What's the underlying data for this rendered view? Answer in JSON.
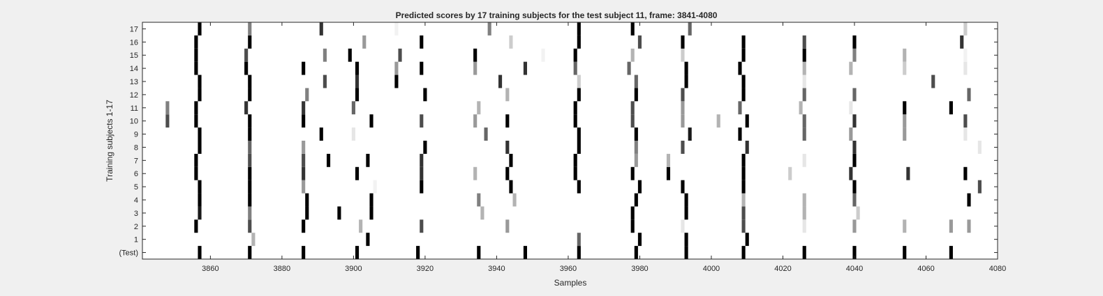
{
  "figure": {
    "background": "#f0f0f0"
  },
  "chart_data": {
    "type": "heatmap",
    "title": "Predicted scores by 17 training subjects for the test subject 11, frame: 3841-4080",
    "xlabel": "Samples",
    "ylabel": "Training subjects 1-17",
    "xlim": [
      3841,
      4080
    ],
    "x_ticks": [
      3860,
      3880,
      3900,
      3920,
      3940,
      3960,
      3980,
      4000,
      4020,
      4040,
      4060,
      4080
    ],
    "y_tick_labels": [
      "(Test)",
      "1",
      "2",
      "3",
      "4",
      "5",
      "6",
      "7",
      "8",
      "9",
      "10",
      "11",
      "12",
      "13",
      "14",
      "15",
      "16",
      "17"
    ],
    "colormap": "gray (white = 0, black = 1)",
    "grid": false,
    "mark_width_samples": 1,
    "rows": [
      {
        "label": "(Test)",
        "marks": [
          [
            3857,
            1
          ],
          [
            3871,
            1
          ],
          [
            3886,
            1
          ],
          [
            3901,
            1
          ],
          [
            3918,
            1
          ],
          [
            3935,
            1
          ],
          [
            3948,
            1
          ],
          [
            3963,
            1
          ],
          [
            3979,
            1
          ],
          [
            3993,
            1
          ],
          [
            4009,
            1
          ],
          [
            4026,
            1
          ],
          [
            4040,
            1
          ],
          [
            4054,
            1
          ],
          [
            4067,
            1
          ]
        ]
      },
      {
        "label": "1",
        "marks": [
          [
            3872,
            0.3
          ],
          [
            3904,
            1
          ],
          [
            3963,
            0.6
          ],
          [
            3980,
            1
          ],
          [
            3993,
            1
          ],
          [
            4010,
            1
          ]
        ]
      },
      {
        "label": "2",
        "marks": [
          [
            3856,
            1
          ],
          [
            3871,
            0.7
          ],
          [
            3886,
            1
          ],
          [
            3902,
            0.3
          ],
          [
            3919,
            0.7
          ],
          [
            3943,
            0.4
          ],
          [
            3978,
            1
          ],
          [
            3992,
            0.1
          ],
          [
            4009,
            0.7
          ],
          [
            4026,
            0.1
          ],
          [
            4040,
            0.4
          ],
          [
            4054,
            0.3
          ],
          [
            4067,
            0.4
          ],
          [
            4072,
            0.4
          ]
        ]
      },
      {
        "label": "3",
        "marks": [
          [
            3857,
            0.9
          ],
          [
            3871,
            0.5
          ],
          [
            3887,
            1
          ],
          [
            3896,
            1
          ],
          [
            3905,
            1
          ],
          [
            3936,
            0.3
          ],
          [
            3978,
            1
          ],
          [
            3993,
            1
          ],
          [
            4009,
            0.7
          ],
          [
            4026,
            0.3
          ],
          [
            4041,
            0.2
          ]
        ]
      },
      {
        "label": "4",
        "marks": [
          [
            3857,
            1
          ],
          [
            3871,
            1
          ],
          [
            3887,
            1
          ],
          [
            3905,
            1
          ],
          [
            3935,
            0.5
          ],
          [
            3945,
            0.3
          ],
          [
            3979,
            1
          ],
          [
            3993,
            1
          ],
          [
            4009,
            0.3
          ],
          [
            4026,
            0.3
          ],
          [
            4040,
            0.6
          ],
          [
            4072,
            1
          ]
        ]
      },
      {
        "label": "5",
        "marks": [
          [
            3857,
            1
          ],
          [
            3871,
            1
          ],
          [
            3886,
            0.4
          ],
          [
            3906,
            0.05
          ],
          [
            3919,
            1
          ],
          [
            3944,
            1
          ],
          [
            3963,
            1
          ],
          [
            3980,
            1
          ],
          [
            3992,
            1
          ],
          [
            4009,
            1
          ],
          [
            4040,
            1
          ],
          [
            4075,
            0.7
          ]
        ]
      },
      {
        "label": "6",
        "marks": [
          [
            3856,
            1
          ],
          [
            3871,
            1
          ],
          [
            3886,
            0.8
          ],
          [
            3901,
            1
          ],
          [
            3919,
            0.8
          ],
          [
            3934,
            0.3
          ],
          [
            3943,
            1
          ],
          [
            3962,
            1
          ],
          [
            3978,
            1
          ],
          [
            3988,
            1
          ],
          [
            4009,
            1
          ],
          [
            4022,
            0.2
          ],
          [
            4039,
            0.8
          ],
          [
            4055,
            0.8
          ],
          [
            4071,
            1
          ]
        ]
      },
      {
        "label": "7",
        "marks": [
          [
            3856,
            1
          ],
          [
            3871,
            0.7
          ],
          [
            3886,
            0.7
          ],
          [
            3893,
            1
          ],
          [
            3904,
            1
          ],
          [
            3919,
            0.8
          ],
          [
            3944,
            1
          ],
          [
            3962,
            1
          ],
          [
            3979,
            0.4
          ],
          [
            3988,
            0.3
          ],
          [
            4009,
            1
          ],
          [
            4026,
            0.1
          ],
          [
            4040,
            1
          ]
        ]
      },
      {
        "label": "8",
        "marks": [
          [
            3857,
            1
          ],
          [
            3871,
            0.6
          ],
          [
            3886,
            0.4
          ],
          [
            3920,
            1
          ],
          [
            3943,
            0.8
          ],
          [
            3963,
            1
          ],
          [
            3979,
            0.5
          ],
          [
            3992,
            0.7
          ],
          [
            4010,
            0.8
          ],
          [
            4040,
            0.8
          ],
          [
            4075,
            0.1
          ]
        ]
      },
      {
        "label": "9",
        "marks": [
          [
            3857,
            1
          ],
          [
            3871,
            1
          ],
          [
            3891,
            1
          ],
          [
            3900,
            0.1
          ],
          [
            3937,
            0.6
          ],
          [
            3963,
            1
          ],
          [
            3979,
            1
          ],
          [
            3994,
            0.9
          ],
          [
            4008,
            1
          ],
          [
            4026,
            0.6
          ],
          [
            4039,
            0.4
          ],
          [
            4054,
            0.4
          ],
          [
            4071,
            0.1
          ]
        ]
      },
      {
        "label": "10",
        "marks": [
          [
            3848,
            0.7
          ],
          [
            3856,
            1
          ],
          [
            3871,
            1
          ],
          [
            3886,
            1
          ],
          [
            3905,
            1
          ],
          [
            3919,
            0.7
          ],
          [
            3934,
            0.4
          ],
          [
            3943,
            1
          ],
          [
            3962,
            1
          ],
          [
            3978,
            0.7
          ],
          [
            3992,
            0.4
          ],
          [
            4002,
            0.3
          ],
          [
            4010,
            1
          ],
          [
            4026,
            0.6
          ],
          [
            4040,
            0.8
          ],
          [
            4054,
            0.4
          ],
          [
            4071,
            0.7
          ]
        ]
      },
      {
        "label": "11",
        "marks": [
          [
            3848,
            0.5
          ],
          [
            3856,
            1
          ],
          [
            3870,
            0.8
          ],
          [
            3886,
            0.8
          ],
          [
            3900,
            0.6
          ],
          [
            3935,
            0.3
          ],
          [
            3962,
            1
          ],
          [
            3978,
            0.7
          ],
          [
            3992,
            0.4
          ],
          [
            4008,
            0.6
          ],
          [
            4025,
            0.3
          ],
          [
            4039,
            0.1
          ],
          [
            4054,
            1
          ],
          [
            4067,
            1
          ]
        ]
      },
      {
        "label": "12",
        "marks": [
          [
            3857,
            1
          ],
          [
            3871,
            1
          ],
          [
            3887,
            0.5
          ],
          [
            3901,
            1
          ],
          [
            3920,
            1
          ],
          [
            3943,
            0.3
          ],
          [
            3963,
            1
          ],
          [
            3979,
            1
          ],
          [
            3992,
            0.7
          ],
          [
            4009,
            1
          ],
          [
            4026,
            0.6
          ],
          [
            4040,
            0.6
          ],
          [
            4072,
            0.6
          ]
        ]
      },
      {
        "label": "13",
        "marks": [
          [
            3857,
            1
          ],
          [
            3871,
            1
          ],
          [
            3892,
            0.7
          ],
          [
            3901,
            0.8
          ],
          [
            3912,
            1
          ],
          [
            3941,
            0.8
          ],
          [
            3963,
            0.2
          ],
          [
            3979,
            0.6
          ],
          [
            3993,
            1
          ],
          [
            4009,
            1
          ],
          [
            4026,
            0.1
          ],
          [
            4062,
            0.7
          ]
        ]
      },
      {
        "label": "14",
        "marks": [
          [
            3856,
            1
          ],
          [
            3870,
            1
          ],
          [
            3886,
            1
          ],
          [
            3901,
            1
          ],
          [
            3912,
            0.4
          ],
          [
            3919,
            1
          ],
          [
            3934,
            0.4
          ],
          [
            3948,
            0.8
          ],
          [
            3962,
            0.6
          ],
          [
            3977,
            0.6
          ],
          [
            3993,
            1
          ],
          [
            4008,
            1
          ],
          [
            4026,
            0.3
          ],
          [
            4039,
            0.3
          ],
          [
            4054,
            0.2
          ],
          [
            4071,
            0.1
          ]
        ]
      },
      {
        "label": "15",
        "marks": [
          [
            3856,
            1
          ],
          [
            3870,
            0.7
          ],
          [
            3892,
            0.5
          ],
          [
            3899,
            1
          ],
          [
            3913,
            0.7
          ],
          [
            3934,
            1
          ],
          [
            3953,
            0.05
          ],
          [
            3962,
            1
          ],
          [
            3978,
            0.3
          ],
          [
            3992,
            0.2
          ],
          [
            4009,
            1
          ],
          [
            4026,
            1
          ],
          [
            4040,
            0.5
          ],
          [
            4054,
            0.3
          ],
          [
            4071,
            0.05
          ]
        ]
      },
      {
        "label": "16",
        "marks": [
          [
            3856,
            1
          ],
          [
            3871,
            1
          ],
          [
            3903,
            0.4
          ],
          [
            3919,
            1
          ],
          [
            3944,
            0.2
          ],
          [
            3963,
            1
          ],
          [
            3980,
            0.7
          ],
          [
            3992,
            1
          ],
          [
            4009,
            1
          ],
          [
            4026,
            0.7
          ],
          [
            4040,
            1
          ],
          [
            4070,
            0.8
          ]
        ]
      },
      {
        "label": "17",
        "marks": [
          [
            3857,
            1
          ],
          [
            3871,
            0.5
          ],
          [
            3891,
            0.8
          ],
          [
            3912,
            0.05
          ],
          [
            3938,
            0.5
          ],
          [
            3963,
            1
          ],
          [
            3978,
            1
          ],
          [
            3994,
            0.6
          ],
          [
            4071,
            0.2
          ]
        ]
      }
    ]
  }
}
